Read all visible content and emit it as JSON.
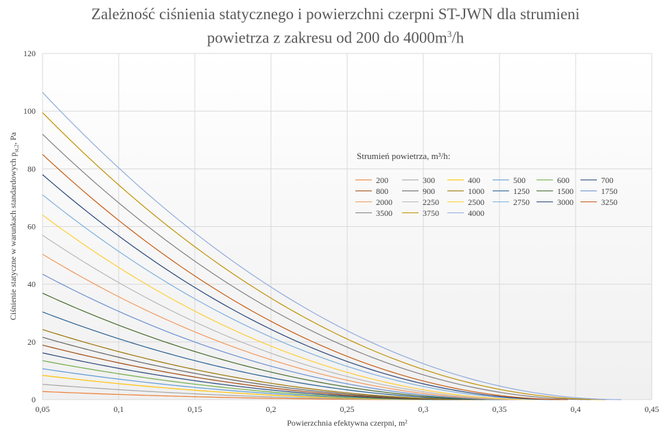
{
  "chart_data": {
    "type": "line",
    "title_line1": "Zależność ciśnienia statycznego i powierzchni czerpni ST-JWN dla strumieni",
    "title_line2_prefix": "powietrza z zakresu od 200 do 4000m",
    "title_line2_sup": "3",
    "title_line2_suffix": "/h",
    "ylabel": "Ciśnienie statyczne w warunkach standardowych p",
    "ylabel_sub": "st,2",
    "ylabel_suffix": ", Pa",
    "xlabel": "Powierzchnia efektywna czerpni, m²",
    "xlim": [
      0.05,
      0.45
    ],
    "ylim": [
      0,
      120
    ],
    "x_ticks": [
      "0,05",
      "0,1",
      "0,15",
      "0,2",
      "0,25",
      "0,3",
      "0,35",
      "0,4",
      "0,45"
    ],
    "y_ticks": [
      "0",
      "20",
      "40",
      "60",
      "80",
      "100",
      "120"
    ],
    "grid": true,
    "legend_title": "Strumień powietrza, m³/h:",
    "legend_position": "center-right",
    "series": [
      {
        "name": "200",
        "color": "#ED7D31",
        "y0": 2.8,
        "x_end": 0.3
      },
      {
        "name": "300",
        "color": "#A5A5A5",
        "y0": 5.3,
        "x_end": 0.31
      },
      {
        "name": "400",
        "color": "#FFC000",
        "y0": 8.4,
        "x_end": 0.315
      },
      {
        "name": "500",
        "color": "#5B9BD5",
        "y0": 10.7,
        "x_end": 0.32
      },
      {
        "name": "600",
        "color": "#70AD47",
        "y0": 13.5,
        "x_end": 0.32
      },
      {
        "name": "700",
        "color": "#264478",
        "y0": 16.2,
        "x_end": 0.325
      },
      {
        "name": "800",
        "color": "#9E480E",
        "y0": 18.9,
        "x_end": 0.33
      },
      {
        "name": "900",
        "color": "#636363",
        "y0": 21.6,
        "x_end": 0.335
      },
      {
        "name": "1000",
        "color": "#997300",
        "y0": 24.3,
        "x_end": 0.34
      },
      {
        "name": "1250",
        "color": "#255E91",
        "y0": 30.4,
        "x_end": 0.35
      },
      {
        "name": "1500",
        "color": "#43682B",
        "y0": 36.9,
        "x_end": 0.355
      },
      {
        "name": "1750",
        "color": "#698ED0",
        "y0": 43.5,
        "x_end": 0.36
      },
      {
        "name": "2000",
        "color": "#F1975A",
        "y0": 50.4,
        "x_end": 0.365
      },
      {
        "name": "2250",
        "color": "#B7B7B7",
        "y0": 57.0,
        "x_end": 0.37
      },
      {
        "name": "2500",
        "color": "#FFCD33",
        "y0": 64.0,
        "x_end": 0.375
      },
      {
        "name": "2750",
        "color": "#7CAFDD",
        "y0": 71.0,
        "x_end": 0.385
      },
      {
        "name": "3000",
        "color": "#264478",
        "y0": 78.0,
        "x_end": 0.39
      },
      {
        "name": "3250",
        "color": "#C55A11",
        "y0": 85.0,
        "x_end": 0.395
      },
      {
        "name": "3500",
        "color": "#7F7F7F",
        "y0": 92.0,
        "x_end": 0.41
      },
      {
        "name": "3750",
        "color": "#BF8F00",
        "y0": 99.5,
        "x_end": 0.42
      },
      {
        "name": "4000",
        "color": "#8FAADC",
        "y0": 106.5,
        "x_end": 0.43
      }
    ]
  }
}
